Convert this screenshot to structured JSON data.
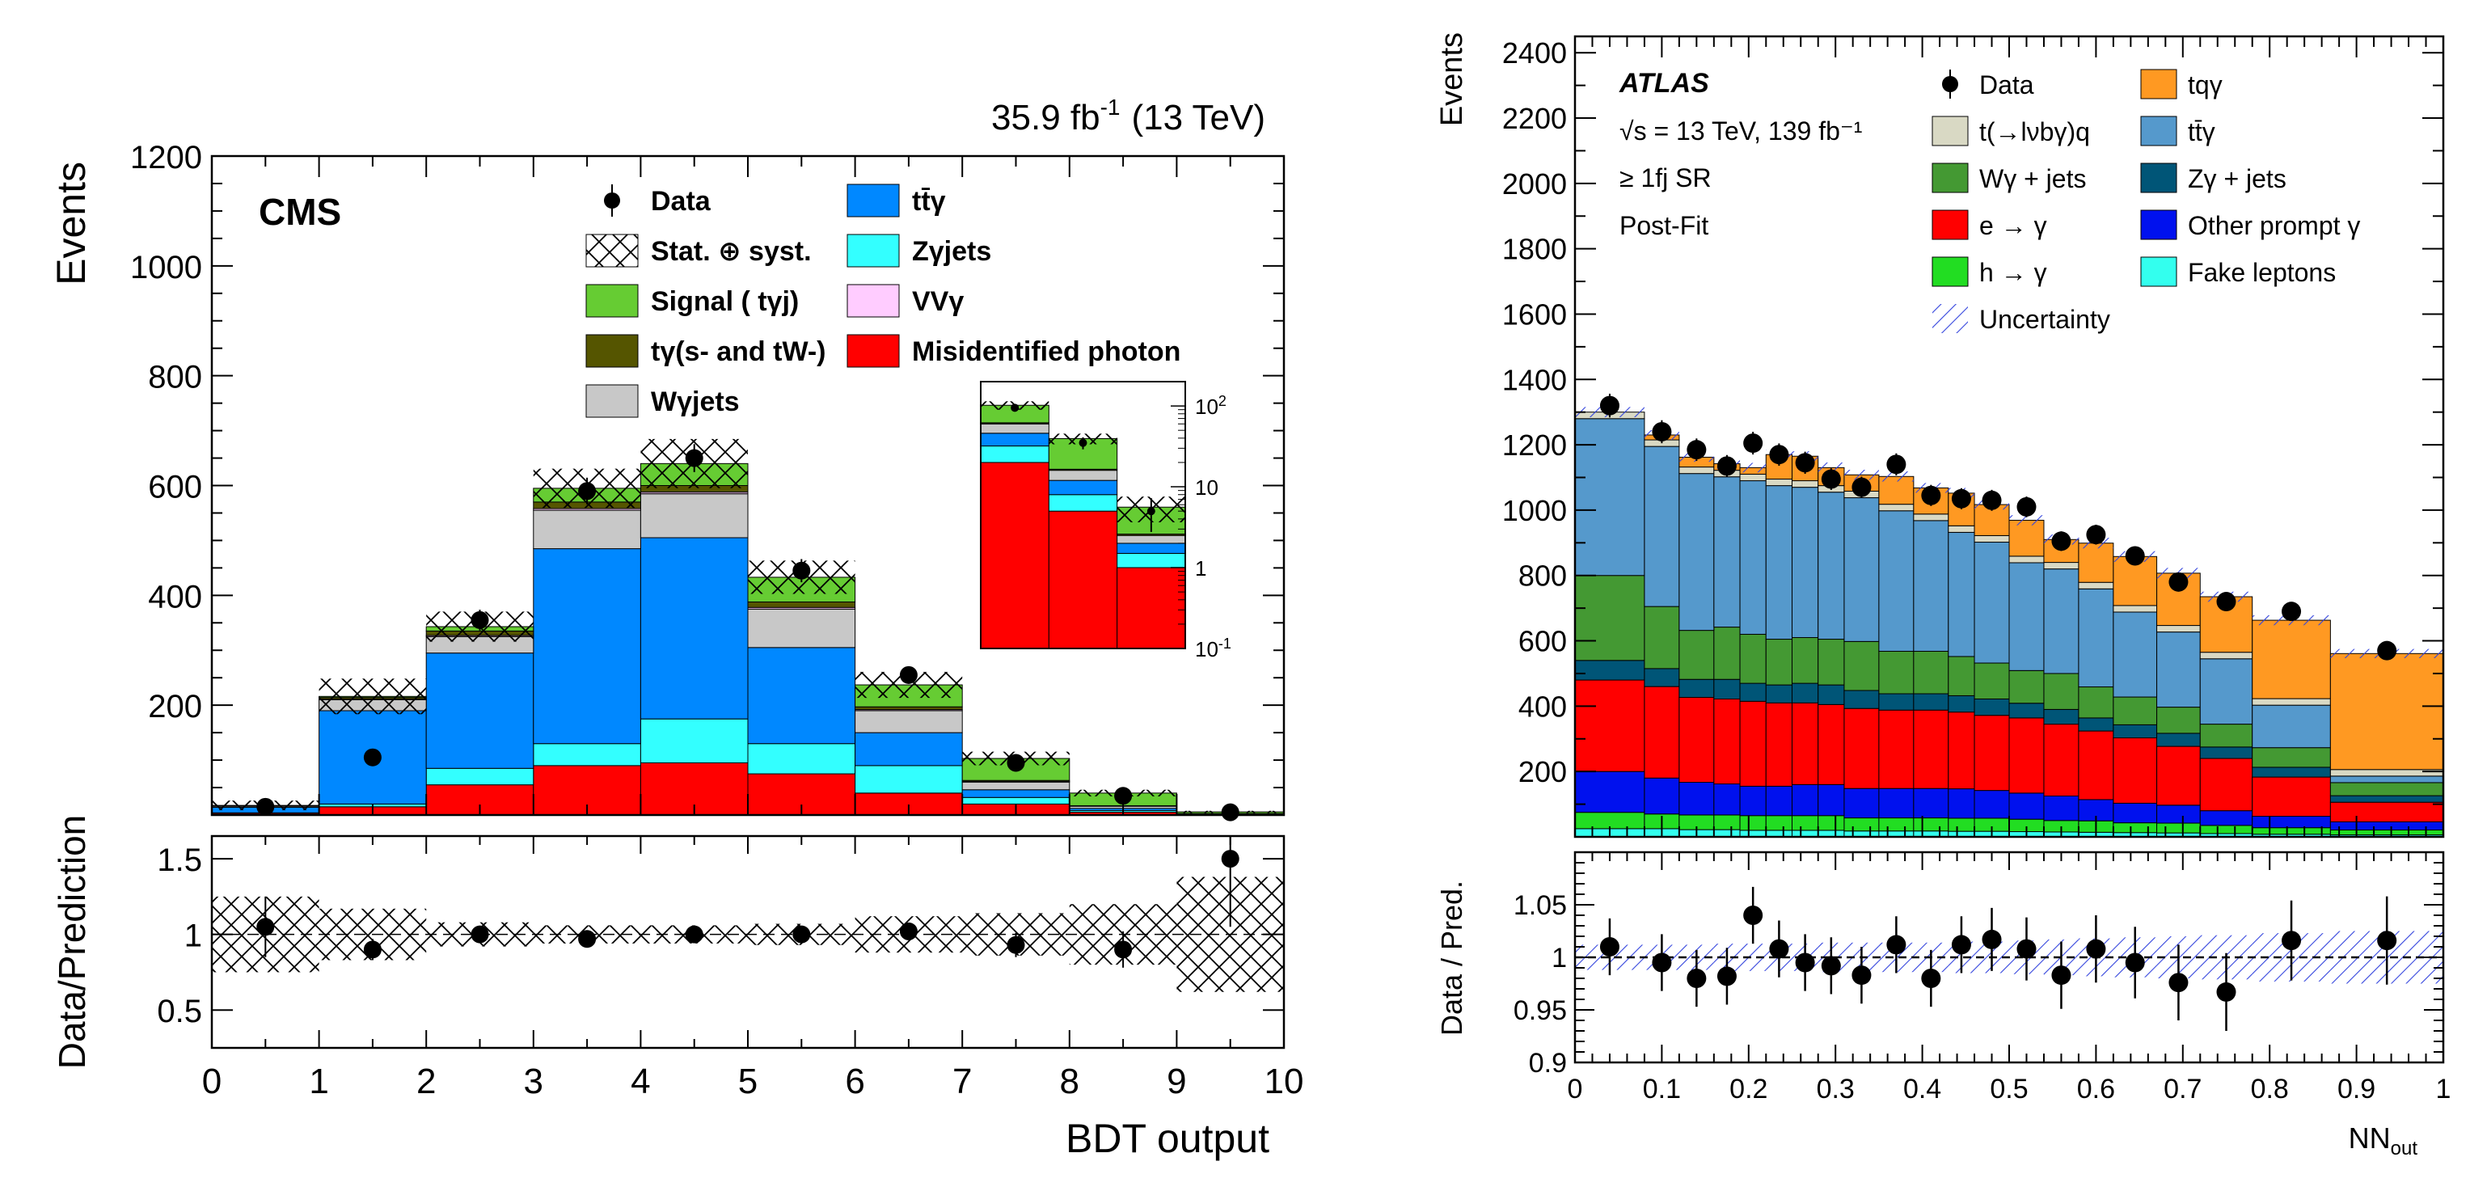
{
  "chart_data": [
    {
      "type": "bar",
      "title": "CMS",
      "subtitle": "35.9 fb-1 (13 TeV)",
      "lumi_text": "35.9 fb",
      "lumi_sup": "-1",
      "energy_text": "(13 TeV)",
      "experiment": "CMS",
      "xlabel": "BDT output",
      "ylabel": "Events",
      "ratio_ylabel": "Data/Prediction",
      "xlim": [
        0,
        10
      ],
      "ylim": [
        0,
        1200
      ],
      "yticks": [
        "200",
        "400",
        "600",
        "800",
        "1000",
        "1200"
      ],
      "xticks": [
        "0",
        "1",
        "2",
        "3",
        "4",
        "5",
        "6",
        "7",
        "8",
        "9",
        "10"
      ],
      "ratio_ylim": [
        0.25,
        1.65
      ],
      "ratio_yticks": [
        "0.5",
        "1",
        "1.5"
      ],
      "stacked": true,
      "bin_edges": [
        0,
        1,
        2,
        3,
        4,
        5,
        6,
        7,
        8,
        9,
        10
      ],
      "series": [
        {
          "name": "Misidentified photon",
          "color": "#ff0000",
          "values": [
            3,
            15,
            55,
            90,
            95,
            75,
            40,
            20,
            5,
            1
          ]
        },
        {
          "name": "Zγjets",
          "color": "#33ffff",
          "values": [
            1,
            5,
            30,
            40,
            80,
            55,
            50,
            12,
            3,
            0.5
          ]
        },
        {
          "name": "tt̄γ",
          "color": "#0088ff",
          "values": [
            10,
            170,
            210,
            355,
            330,
            175,
            60,
            14,
            4,
            0.5
          ]
        },
        {
          "name": "Wγjets",
          "color": "#c8c8c8",
          "values": [
            2,
            20,
            30,
            70,
            80,
            70,
            40,
            14,
            4,
            0.5
          ]
        },
        {
          "name": "VVγ",
          "color": "#ffccff",
          "values": [
            0.5,
            1,
            2,
            3,
            3,
            3,
            2,
            1,
            0.5,
            0.1
          ]
        },
        {
          "name": "tγ(s- and tW-)",
          "color": "#555500",
          "values": [
            0.5,
            3,
            8,
            12,
            12,
            10,
            5,
            2,
            0.5,
            0.1
          ]
        },
        {
          "name": "Signal ( tγj)",
          "color": "#66cc33",
          "values": [
            0.5,
            2,
            8,
            25,
            40,
            45,
            40,
            40,
            23,
            3
          ]
        }
      ],
      "data_points": {
        "name": "Data",
        "x": [
          0.5,
          1.5,
          2.5,
          3.5,
          4.5,
          5.5,
          6.5,
          7.5,
          8.5,
          9.5
        ],
        "y": [
          15,
          105,
          355,
          590,
          650,
          445,
          255,
          95,
          35,
          5
        ]
      },
      "uncertainty": {
        "name": "Stat. ⊕ syst.",
        "frac": [
          0.5,
          0.15,
          0.08,
          0.06,
          0.07,
          0.07,
          0.1,
          0.12,
          0.15,
          0.35
        ]
      },
      "ratio": {
        "x": [
          0.5,
          1.5,
          2.5,
          3.5,
          4.5,
          5.5,
          6.5,
          7.5,
          8.5,
          9.5
        ],
        "y": [
          1.05,
          0.9,
          1.0,
          0.97,
          1.0,
          1.0,
          1.02,
          0.93,
          0.9,
          1.5
        ],
        "err": [
          0.2,
          0.07,
          0.04,
          0.03,
          0.03,
          0.04,
          0.05,
          0.08,
          0.12,
          0.45
        ],
        "band": [
          0.25,
          0.17,
          0.08,
          0.06,
          0.06,
          0.07,
          0.12,
          0.14,
          0.2,
          0.38
        ]
      },
      "inset": {
        "scale": "log",
        "ylim": [
          0.1,
          200
        ],
        "yticks": [
          "10-1",
          "1",
          "10",
          "102"
        ],
        "bins": [
          7,
          8,
          9
        ],
        "layers": [
          {
            "color": "#ff0000",
            "values": [
              20,
              5,
              1
            ]
          },
          {
            "color": "#33ffff",
            "values": [
              12,
              3,
              0.5
            ]
          },
          {
            "color": "#0088ff",
            "values": [
              14,
              4,
              0.5
            ]
          },
          {
            "color": "#c8c8c8",
            "values": [
              14,
              4,
              0.5
            ]
          },
          {
            "color": "#555500",
            "values": [
              2,
              0.5,
              0.1
            ]
          },
          {
            "color": "#66cc33",
            "values": [
              40,
              23,
              3
            ]
          }
        ],
        "data": [
          95,
          35,
          5
        ]
      },
      "legend": [
        {
          "label": "Data",
          "kind": "point"
        },
        {
          "label": "tt̄γ",
          "kind": "box",
          "color": "#0088ff"
        },
        {
          "label": "Stat. ⊕ syst.",
          "kind": "hatch"
        },
        {
          "label": "Zγjets",
          "kind": "box",
          "color": "#33ffff"
        },
        {
          "label": "Signal ( tγj)",
          "kind": "box",
          "color": "#66cc33"
        },
        {
          "label": "VVγ",
          "kind": "box",
          "color": "#ffccff"
        },
        {
          "label": "tγ(s- and tW-)",
          "kind": "box",
          "color": "#555500"
        },
        {
          "label": "Misidentified photon",
          "kind": "box",
          "color": "#ff0000"
        },
        {
          "label": "Wγjets",
          "kind": "box",
          "color": "#c8c8c8"
        }
      ]
    },
    {
      "type": "bar",
      "experiment": "ATLAS",
      "annotations": [
        "√s = 13 TeV, 139 fb⁻¹",
        "≥ 1fj SR",
        "Post-Fit"
      ],
      "xlabel": "NNout",
      "xlabel_main": "NN",
      "xlabel_sub": "out",
      "ylabel": "Events",
      "ratio_ylabel": "Data / Pred.",
      "xlim": [
        0,
        1
      ],
      "ylim": [
        0,
        2450
      ],
      "yticks": [
        "200",
        "400",
        "600",
        "800",
        "1000",
        "1200",
        "1400",
        "1600",
        "1800",
        "2000",
        "2200",
        "2400"
      ],
      "xticks": [
        "0",
        "0.1",
        "0.2",
        "0.3",
        "0.4",
        "0.5",
        "0.6",
        "0.7",
        "0.8",
        "0.9",
        "1"
      ],
      "ratio_ylim": [
        0.9,
        1.1
      ],
      "ratio_yticks": [
        "0.9",
        "0.95",
        "1",
        "1.05"
      ],
      "stacked": true,
      "bin_edges": [
        0,
        0.08,
        0.12,
        0.16,
        0.19,
        0.22,
        0.25,
        0.28,
        0.31,
        0.35,
        0.39,
        0.43,
        0.46,
        0.5,
        0.54,
        0.58,
        0.62,
        0.67,
        0.72,
        0.78,
        0.87,
        1.0
      ],
      "series": [
        {
          "name": "Fake leptons",
          "color": "#33ffee",
          "values": [
            25,
            25,
            22,
            22,
            20,
            20,
            20,
            20,
            18,
            18,
            18,
            17,
            17,
            16,
            15,
            14,
            13,
            12,
            10,
            8,
            6
          ]
        },
        {
          "name": "h → γ",
          "color": "#22dd22",
          "values": [
            50,
            45,
            45,
            45,
            45,
            45,
            45,
            45,
            40,
            40,
            40,
            40,
            40,
            38,
            35,
            35,
            30,
            30,
            25,
            20,
            15
          ]
        },
        {
          "name": "Other prompt γ",
          "color": "#0011ee",
          "values": [
            125,
            110,
            100,
            95,
            90,
            90,
            95,
            95,
            90,
            90,
            90,
            90,
            85,
            80,
            75,
            65,
            60,
            55,
            45,
            35,
            25
          ]
        },
        {
          "name": "e → γ",
          "color": "#ff0000",
          "values": [
            280,
            280,
            260,
            260,
            260,
            255,
            250,
            245,
            245,
            240,
            240,
            235,
            230,
            230,
            220,
            210,
            200,
            180,
            160,
            120,
            60
          ]
        },
        {
          "name": "Zγ + jets",
          "color": "#005577",
          "values": [
            60,
            55,
            55,
            60,
            55,
            55,
            60,
            60,
            55,
            50,
            50,
            50,
            50,
            45,
            45,
            40,
            40,
            40,
            35,
            30,
            20
          ]
        },
        {
          "name": "Wγ + jets",
          "color": "#449933",
          "values": [
            260,
            190,
            150,
            160,
            150,
            140,
            140,
            140,
            150,
            130,
            130,
            120,
            110,
            100,
            110,
            95,
            85,
            80,
            70,
            60,
            40
          ]
        },
        {
          "name": "tt̄γ",
          "color": "#5599cc",
          "values": [
            480,
            490,
            480,
            460,
            470,
            470,
            460,
            450,
            440,
            430,
            400,
            380,
            370,
            330,
            320,
            300,
            260,
            230,
            200,
            130,
            20
          ]
        },
        {
          "name": "t(→lνbγ)q",
          "color": "#d9d9c4",
          "values": [
            20,
            20,
            20,
            20,
            20,
            20,
            20,
            20,
            20,
            20,
            20,
            20,
            20,
            20,
            20,
            20,
            20,
            20,
            20,
            20,
            20
          ]
        },
        {
          "name": "tqγ",
          "color": "#ff9922",
          "values": [
            0,
            15,
            30,
            20,
            20,
            75,
            75,
            55,
            50,
            85,
            80,
            100,
            95,
            110,
            70,
            120,
            150,
            160,
            170,
            240,
            355
          ]
        }
      ],
      "data_points": {
        "name": "Data",
        "x": [
          0.04,
          0.1,
          0.14,
          0.175,
          0.205,
          0.235,
          0.265,
          0.295,
          0.33,
          0.37,
          0.41,
          0.445,
          0.48,
          0.52,
          0.56,
          0.6,
          0.645,
          0.695,
          0.75,
          0.825,
          0.935
        ],
        "y": [
          1320,
          1240,
          1185,
          1135,
          1205,
          1170,
          1145,
          1095,
          1070,
          1140,
          1045,
          1035,
          1030,
          1010,
          905,
          925,
          860,
          780,
          720,
          690,
          570
        ]
      },
      "ratio": {
        "x": [
          0.04,
          0.1,
          0.14,
          0.175,
          0.205,
          0.235,
          0.265,
          0.295,
          0.33,
          0.37,
          0.41,
          0.445,
          0.48,
          0.52,
          0.56,
          0.6,
          0.645,
          0.695,
          0.75,
          0.825,
          0.935
        ],
        "y": [
          1.01,
          0.995,
          0.98,
          0.982,
          1.04,
          1.008,
          0.995,
          0.992,
          0.983,
          1.012,
          0.98,
          1.012,
          1.017,
          1.008,
          0.983,
          1.008,
          0.995,
          0.976,
          0.967,
          1.016,
          1.016
        ],
        "err": [
          0.027,
          0.027,
          0.027,
          0.027,
          0.027,
          0.027,
          0.027,
          0.027,
          0.027,
          0.027,
          0.027,
          0.027,
          0.03,
          0.03,
          0.032,
          0.032,
          0.034,
          0.036,
          0.037,
          0.038,
          0.042
        ],
        "band": [
          0.012,
          0.012,
          0.012,
          0.013,
          0.013,
          0.013,
          0.013,
          0.014,
          0.014,
          0.014,
          0.014,
          0.015,
          0.015,
          0.016,
          0.017,
          0.018,
          0.019,
          0.02,
          0.021,
          0.023,
          0.025
        ]
      },
      "legend": [
        {
          "label": "Data",
          "kind": "point"
        },
        {
          "label": "tqγ",
          "kind": "box",
          "color": "#ff9922"
        },
        {
          "label": "t(→lνbγ)q",
          "kind": "box",
          "color": "#d9d9c4"
        },
        {
          "label": "tt̄γ",
          "kind": "box",
          "color": "#5599cc"
        },
        {
          "label": "Wγ + jets",
          "kind": "box",
          "color": "#449933"
        },
        {
          "label": "Zγ + jets",
          "kind": "box",
          "color": "#005577"
        },
        {
          "label": "e → γ",
          "kind": "box",
          "color": "#ff0000"
        },
        {
          "label": "Other prompt γ",
          "kind": "box",
          "color": "#0011ee"
        },
        {
          "label": "h → γ",
          "kind": "box",
          "color": "#22dd22"
        },
        {
          "label": "Fake leptons",
          "kind": "box",
          "color": "#33ffee"
        },
        {
          "label": "Uncertainty",
          "kind": "hatch"
        }
      ]
    }
  ]
}
